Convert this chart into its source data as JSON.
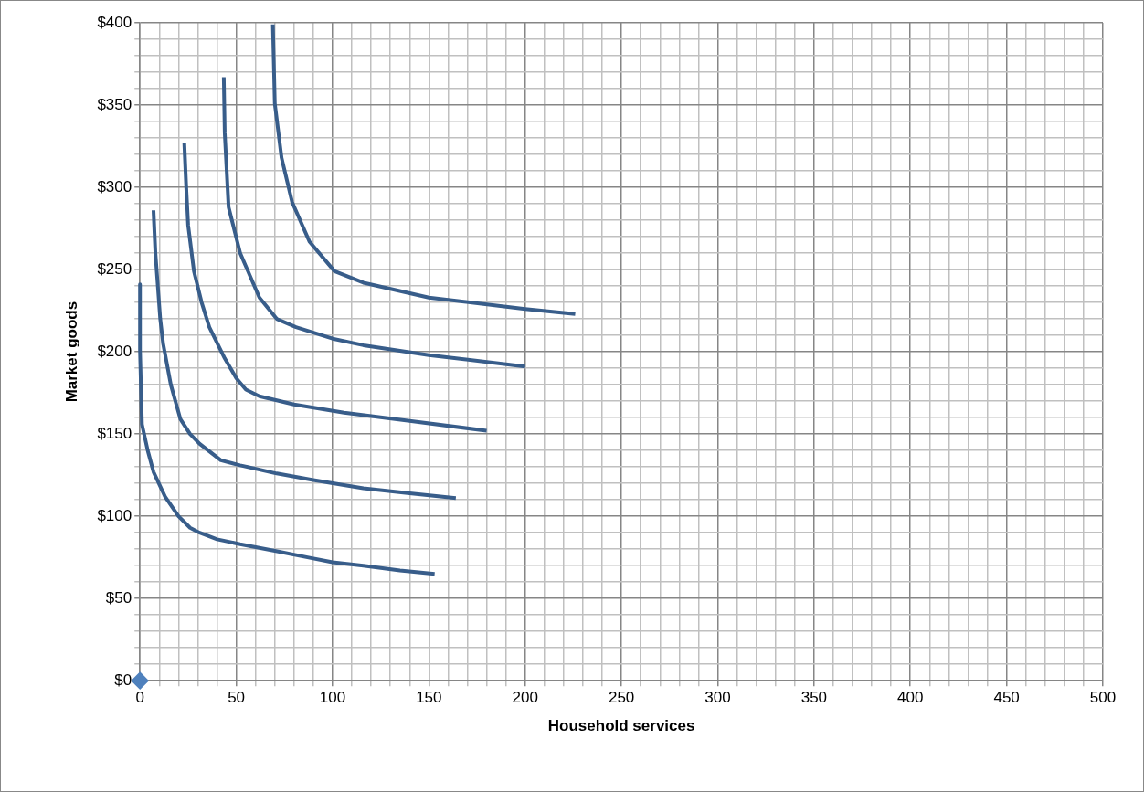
{
  "chart_data": {
    "type": "line",
    "xlabel": "Household services",
    "ylabel": "Market goods",
    "xlim": [
      0,
      500
    ],
    "ylim": [
      0,
      400
    ],
    "xticks": [
      0,
      {
        "value": 10,
        "label": null
      },
      {
        "value": 20,
        "label": null
      },
      {
        "value": 30,
        "label": null
      },
      {
        "value": 40,
        "label": null
      },
      50,
      {
        "value": 60,
        "label": null
      },
      {
        "value": 70,
        "label": null
      },
      {
        "value": 80,
        "label": null
      },
      {
        "value": 90,
        "label": null
      },
      100,
      {
        "value": 110,
        "label": null
      },
      {
        "value": 120,
        "label": null
      },
      {
        "value": 130,
        "label": null
      },
      {
        "value": 140,
        "label": null
      },
      150,
      {
        "value": 160,
        "label": null
      },
      {
        "value": 170,
        "label": null
      },
      {
        "value": 180,
        "label": null
      },
      {
        "value": 190,
        "label": null
      },
      200,
      {
        "value": 210,
        "label": null
      },
      {
        "value": 220,
        "label": null
      },
      {
        "value": 230,
        "label": null
      },
      {
        "value": 240,
        "label": null
      },
      250,
      {
        "value": 260,
        "label": null
      },
      {
        "value": 270,
        "label": null
      },
      {
        "value": 280,
        "label": null
      },
      {
        "value": 290,
        "label": null
      },
      300,
      {
        "value": 310,
        "label": null
      },
      {
        "value": 320,
        "label": null
      },
      {
        "value": 330,
        "label": null
      },
      {
        "value": 340,
        "label": null
      },
      350,
      {
        "value": 360,
        "label": null
      },
      {
        "value": 370,
        "label": null
      },
      {
        "value": 380,
        "label": null
      },
      {
        "value": 390,
        "label": null
      },
      400,
      {
        "value": 410,
        "label": null
      },
      {
        "value": 420,
        "label": null
      },
      {
        "value": 430,
        "label": null
      },
      {
        "value": 440,
        "label": null
      },
      450,
      {
        "value": 460,
        "label": null
      },
      {
        "value": 470,
        "label": null
      },
      {
        "value": 480,
        "label": null
      },
      {
        "value": 490,
        "label": null
      },
      500
    ],
    "yticks": [
      {
        "value": 0,
        "label": "$0"
      },
      {
        "value": 10,
        "label": null
      },
      {
        "value": 20,
        "label": null
      },
      {
        "value": 30,
        "label": null
      },
      {
        "value": 40,
        "label": null
      },
      {
        "value": 50,
        "label": "$50"
      },
      {
        "value": 60,
        "label": null
      },
      {
        "value": 70,
        "label": null
      },
      {
        "value": 80,
        "label": null
      },
      {
        "value": 90,
        "label": null
      },
      {
        "value": 100,
        "label": "$100"
      },
      {
        "value": 110,
        "label": null
      },
      {
        "value": 120,
        "label": null
      },
      {
        "value": 130,
        "label": null
      },
      {
        "value": 140,
        "label": null
      },
      {
        "value": 150,
        "label": "$150"
      },
      {
        "value": 160,
        "label": null
      },
      {
        "value": 170,
        "label": null
      },
      {
        "value": 180,
        "label": null
      },
      {
        "value": 190,
        "label": null
      },
      {
        "value": 200,
        "label": "$200"
      },
      {
        "value": 210,
        "label": null
      },
      {
        "value": 220,
        "label": null
      },
      {
        "value": 230,
        "label": null
      },
      {
        "value": 240,
        "label": null
      },
      {
        "value": 250,
        "label": "$250"
      },
      {
        "value": 260,
        "label": null
      },
      {
        "value": 270,
        "label": null
      },
      {
        "value": 280,
        "label": null
      },
      {
        "value": 290,
        "label": null
      },
      {
        "value": 300,
        "label": "$300"
      },
      {
        "value": 310,
        "label": null
      },
      {
        "value": 320,
        "label": null
      },
      {
        "value": 330,
        "label": null
      },
      {
        "value": 340,
        "label": null
      },
      {
        "value": 350,
        "label": "$350"
      },
      {
        "value": 360,
        "label": null
      },
      {
        "value": 370,
        "label": null
      },
      {
        "value": 380,
        "label": null
      },
      {
        "value": 390,
        "label": null
      },
      {
        "value": 400,
        "label": "$400"
      }
    ],
    "grid": true,
    "marker": "none",
    "line_style": "solid",
    "series": [
      {
        "type": "line",
        "color": "#385d8a",
        "x": [
          0,
          0,
          1,
          4,
          7,
          13,
          20,
          26,
          31,
          40,
          52,
          70,
          87,
          100,
          116,
          135,
          153
        ],
        "values": [
          241,
          201,
          156,
          140,
          127,
          112,
          100,
          93,
          90,
          86,
          83,
          79,
          75,
          72,
          70,
          67,
          65
        ]
      },
      {
        "type": "line",
        "color": "#385d8a",
        "x": [
          7,
          8,
          10.5,
          12,
          16,
          21,
          26,
          31,
          42,
          52,
          71,
          90,
          116,
          140,
          164
        ],
        "values": [
          286,
          260,
          220,
          205,
          180,
          159,
          150,
          144,
          134,
          131,
          126,
          122,
          117,
          114,
          111
        ]
      },
      {
        "type": "line",
        "color": "#385d8a",
        "x": [
          23,
          24,
          25,
          28,
          32,
          36,
          44,
          50,
          55,
          62,
          80,
          106,
          140,
          180
        ],
        "values": [
          327,
          300,
          277,
          249,
          230,
          215,
          196,
          184,
          177,
          173,
          168,
          163,
          158,
          152
        ]
      },
      {
        "type": "line",
        "color": "#385d8a",
        "x": [
          43.5,
          44,
          46,
          52,
          62,
          71,
          81,
          100,
          116,
          150,
          200
        ],
        "values": [
          367,
          333,
          288,
          260,
          233,
          220,
          215,
          208,
          204,
          198,
          191
        ]
      },
      {
        "type": "line",
        "color": "#385d8a",
        "x": [
          69,
          70,
          73.5,
          79,
          88,
          101,
          116,
          150,
          200,
          226
        ],
        "values": [
          399,
          351,
          318,
          291,
          267,
          249,
          242,
          233,
          226,
          223
        ]
      },
      {
        "type": "scatter",
        "color": "#4f81bd",
        "marker": "diamond",
        "x": [
          0
        ],
        "values": [
          0
        ]
      }
    ]
  }
}
